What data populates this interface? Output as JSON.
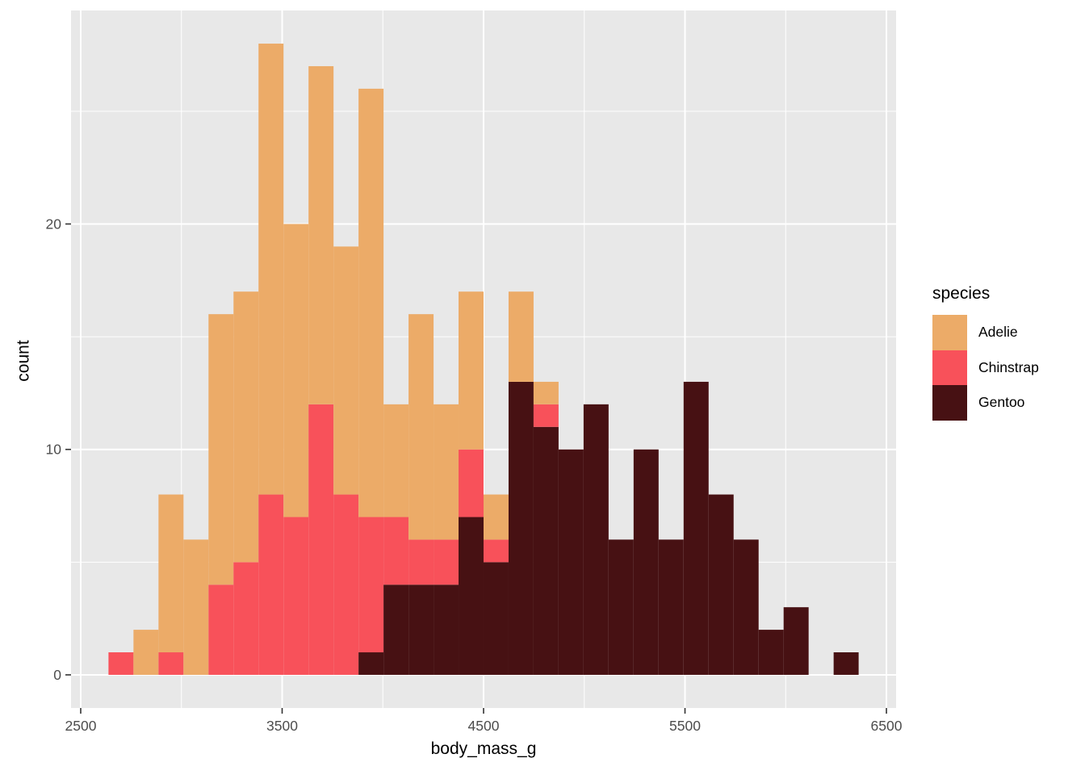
{
  "chart_data": {
    "type": "bar",
    "subtype": "stacked-histogram",
    "title": "",
    "xlabel": "body_mass_g",
    "ylabel": "count",
    "bin_width": 124.138,
    "bin_centers": [
      2700,
      2824.1,
      2948.3,
      3072.4,
      3196.6,
      3320.7,
      3444.8,
      3569.0,
      3693.1,
      3817.2,
      3941.4,
      4065.5,
      4189.7,
      4313.8,
      4437.9,
      4562.1,
      4686.2,
      4810.3,
      4934.5,
      5058.6,
      5182.8,
      5306.9,
      5431.0,
      5555.2,
      5679.3,
      5803.4,
      5927.6,
      6051.7,
      6175.9,
      6300
    ],
    "series": [
      {
        "name": "Adelie",
        "color": "#ECAB68",
        "values": [
          0,
          2,
          7,
          6,
          12,
          12,
          20,
          13,
          15,
          11,
          19,
          5,
          10,
          6,
          7,
          2,
          4,
          1,
          0,
          0,
          0,
          0,
          0,
          0,
          0,
          0,
          0,
          0,
          0,
          0
        ]
      },
      {
        "name": "Chinstrap",
        "color": "#F8515A",
        "values": [
          1,
          0,
          1,
          0,
          4,
          5,
          8,
          7,
          12,
          8,
          6,
          3,
          2,
          2,
          3,
          1,
          0,
          1,
          0,
          0,
          0,
          0,
          0,
          0,
          0,
          0,
          0,
          0,
          0,
          0
        ]
      },
      {
        "name": "Gentoo",
        "color": "#471113",
        "values": [
          0,
          0,
          0,
          0,
          0,
          0,
          0,
          0,
          0,
          0,
          1,
          4,
          4,
          4,
          7,
          5,
          13,
          11,
          10,
          12,
          6,
          10,
          6,
          13,
          8,
          6,
          2,
          3,
          0,
          1
        ]
      }
    ],
    "stack_order_bottom_to_top": [
      "Gentoo",
      "Chinstrap",
      "Adelie"
    ],
    "legend": {
      "title": "species",
      "entries": [
        {
          "label": "Adelie",
          "color": "#ECAB68"
        },
        {
          "label": "Chinstrap",
          "color": "#F8515A"
        },
        {
          "label": "Gentoo",
          "color": "#471113"
        }
      ],
      "position": "right"
    },
    "x_ticks": [
      2500,
      3500,
      4500,
      5500,
      6500
    ],
    "x_minor_ticks": [
      3000,
      4000,
      5000,
      6000
    ],
    "y_ticks": [
      0,
      10,
      20
    ],
    "y_minor_ticks": [
      5,
      15,
      25
    ],
    "xlim": [
      2452,
      6548
    ],
    "ylim": [
      -1.47,
      29.47
    ],
    "grid": "on",
    "panel_bg": "#E8E8E8",
    "grid_color": "#FFFFFF",
    "tick_color": "#333333",
    "tick_label_color": "#4D4D4D"
  }
}
